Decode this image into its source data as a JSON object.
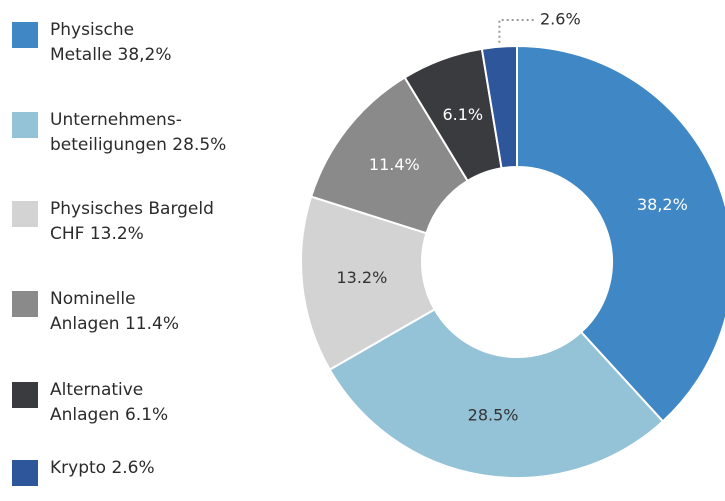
{
  "chart_data": {
    "type": "donut",
    "categories": [
      [
        "Physische",
        "Metalle 38,2%"
      ],
      [
        "Unternehmens-",
        "beteiligungen 28.5%"
      ],
      [
        "Physisches Bargeld",
        "CHF 13.2%"
      ],
      [
        "Nominelle",
        "Anlagen 11.4%"
      ],
      [
        "Alternative",
        "Anlagen 6.1%"
      ],
      [
        "Krypto 2.6%"
      ]
    ],
    "values": [
      38.2,
      28.5,
      13.2,
      11.4,
      6.1,
      2.6
    ],
    "value_labels": [
      "38,2%",
      "28.5%",
      "13.2%",
      "11.4%",
      "6.1%",
      "2.6%"
    ],
    "colors": [
      "#3f87c5",
      "#94c2d6",
      "#d3d3d3",
      "#8a8a8a",
      "#3a3b3f",
      "#2e579b"
    ]
  }
}
